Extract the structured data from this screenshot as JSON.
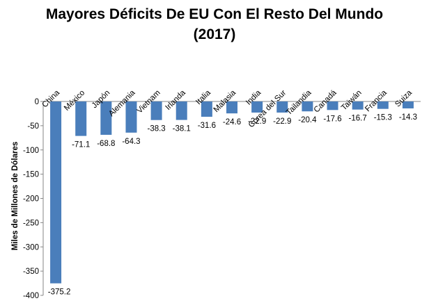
{
  "chart_data": {
    "type": "bar",
    "title": "Mayores Déficits De EU Con El Resto Del Mundo",
    "subtitle": "(2017)",
    "ylabel": "Miles de Millones de Dólares",
    "xlabel": "",
    "ylim": [
      -400,
      0
    ],
    "yticks": [
      "0",
      "-50",
      "-100",
      "-150",
      "-200",
      "-250",
      "-300",
      "-350",
      "-400"
    ],
    "categories": [
      "China",
      "México",
      "Japón",
      "Alemania",
      "Vietnam",
      "Irlanda",
      "Italia",
      "Malasia",
      "India",
      "Corea del Sur",
      "Tailandia",
      "Canadá",
      "Taiwán",
      "Francia",
      "Suiza"
    ],
    "values": [
      -375.2,
      -71.1,
      -68.8,
      -64.3,
      -38.3,
      -38.1,
      -31.6,
      -24.6,
      -22.9,
      -22.9,
      -20.4,
      -17.6,
      -16.7,
      -15.3,
      -14.3
    ],
    "data_labels": [
      "-375.2",
      "-71.1",
      "-68.8",
      "-64.3",
      "-38.3",
      "-38.1",
      "-31.6",
      "-24.6",
      "-22.9",
      "-22.9",
      "-20.4",
      "-17.6",
      "-16.7",
      "-15.3",
      "-14.3"
    ],
    "bar_color": "#4a7ebb",
    "grid": false,
    "legend": "none"
  }
}
